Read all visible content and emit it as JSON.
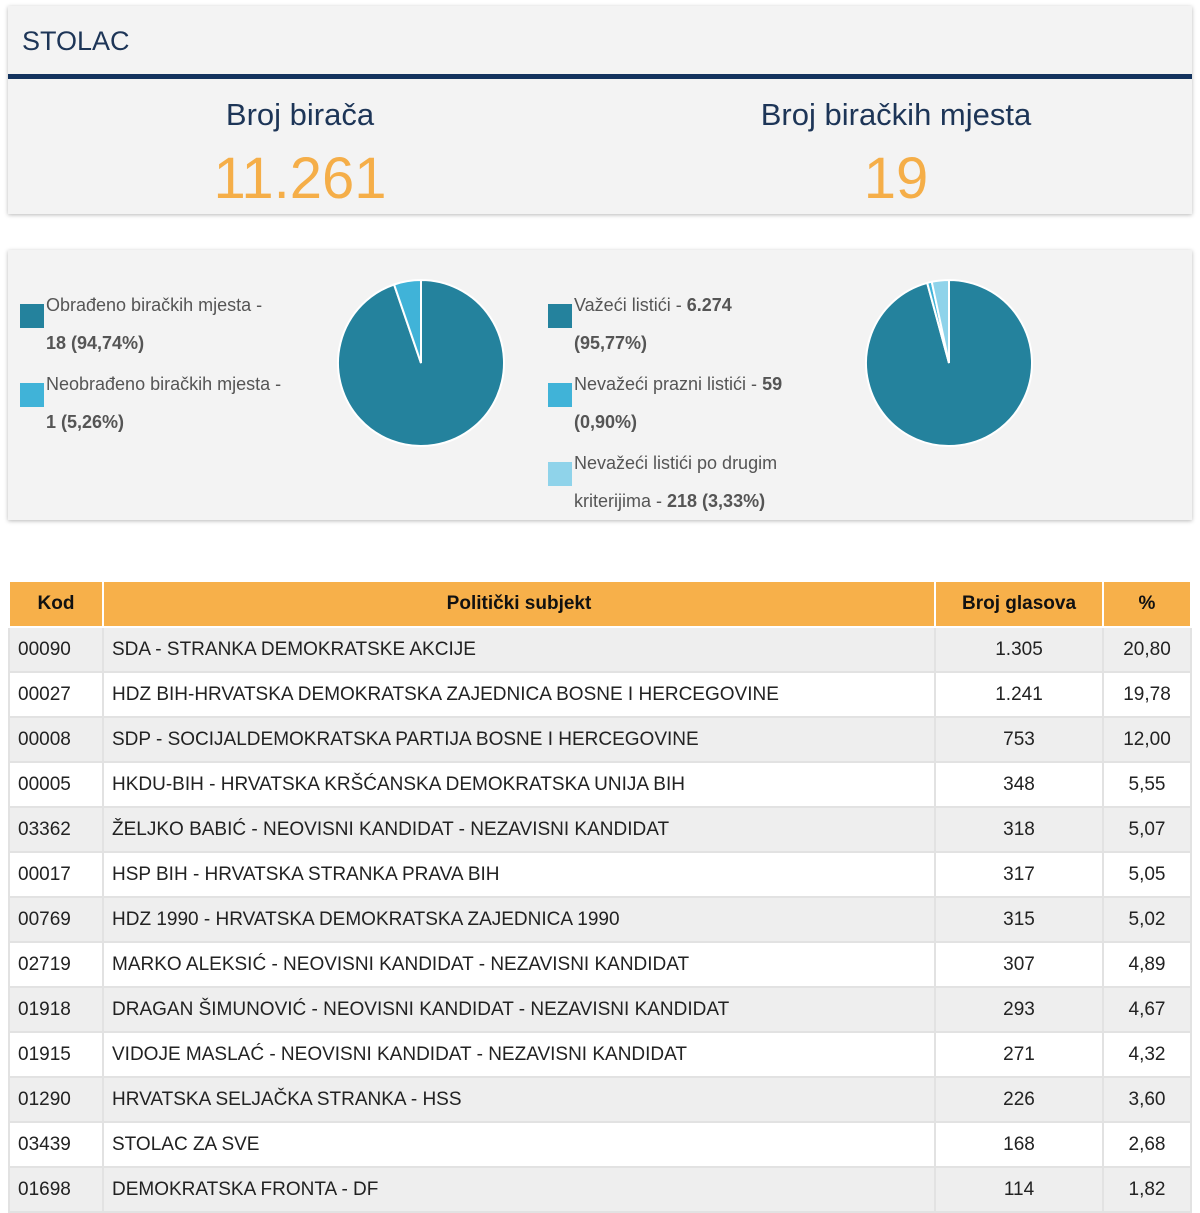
{
  "municipality": "STOLAC",
  "stats": {
    "voters_label": "Broj birača",
    "voters_value": "11.261",
    "stations_label": "Broj biračkih mjesta",
    "stations_value": "19"
  },
  "colors": {
    "dark_teal": "#24829d",
    "light_blue": "#40b3d8",
    "pale_blue": "#8fd3ea",
    "orange": "#f5ae48",
    "navy": "#13335e"
  },
  "pie1": {
    "legend": [
      {
        "label": "Obrađeno biračkih mjesta -",
        "value": "18 (94,74%)"
      },
      {
        "label": "Neobrađeno biračkih mjesta -",
        "value": "1 (5,26%)"
      }
    ],
    "fractions": [
      0.9474,
      0.0526
    ]
  },
  "pie2": {
    "legend": [
      {
        "label": "Važeći listići -",
        "value": "6.274",
        "value2": "(95,77%)"
      },
      {
        "label": "Nevažeći prazni listići -",
        "value": "59",
        "value2": "(0,90%)"
      },
      {
        "label": "Nevažeći listići po drugim",
        "label2": "kriterijima -",
        "value": "218 (3,33%)"
      }
    ],
    "fractions": [
      0.9577,
      0.009,
      0.0333
    ]
  },
  "table": {
    "headers": [
      "Kod",
      "Politički subjekt",
      "Broj glasova",
      "%"
    ],
    "rows": [
      [
        "00090",
        "SDA - STRANKA DEMOKRATSKE AKCIJE",
        "1.305",
        "20,80"
      ],
      [
        "00027",
        "HDZ BIH-HRVATSKA DEMOKRATSKA ZAJEDNICA BOSNE I HERCEGOVINE",
        "1.241",
        "19,78"
      ],
      [
        "00008",
        "SDP - SOCIJALDEMOKRATSKA PARTIJA BOSNE I HERCEGOVINE",
        "753",
        "12,00"
      ],
      [
        "00005",
        "HKDU-BIH - HRVATSKA KRŠĆANSKA DEMOKRATSKA UNIJA BIH",
        "348",
        "5,55"
      ],
      [
        "03362",
        "ŽELJKO BABIĆ - NEOVISNI KANDIDAT - NEZAVISNI KANDIDAT",
        "318",
        "5,07"
      ],
      [
        "00017",
        "HSP BIH - HRVATSKA STRANKA PRAVA BIH",
        "317",
        "5,05"
      ],
      [
        "00769",
        "HDZ 1990 - HRVATSKA DEMOKRATSKA ZAJEDNICA 1990",
        "315",
        "5,02"
      ],
      [
        "02719",
        "MARKO ALEKSIĆ - NEOVISNI KANDIDAT - NEZAVISNI KANDIDAT",
        "307",
        "4,89"
      ],
      [
        "01918",
        "DRAGAN ŠIMUNOVIĆ - NEOVISNI KANDIDAT - NEZAVISNI KANDIDAT",
        "293",
        "4,67"
      ],
      [
        "01915",
        "VIDOJE MASLAĆ - NEOVISNI KANDIDAT - NEZAVISNI KANDIDAT",
        "271",
        "4,32"
      ],
      [
        "01290",
        "HRVATSKA SELJAČKA STRANKA - HSS",
        "226",
        "3,60"
      ],
      [
        "03439",
        "STOLAC ZA SVE",
        "168",
        "2,68"
      ],
      [
        "01698",
        "DEMOKRATSKA FRONTA - DF",
        "114",
        "1,82"
      ]
    ]
  }
}
